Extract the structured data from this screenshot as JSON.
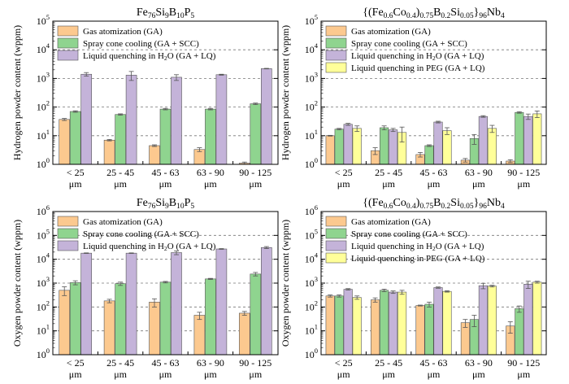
{
  "figure": {
    "background": "#ffffff"
  },
  "colors": {
    "GA": "#fcc98f",
    "GA + SCC": "#8fd48f",
    "GA + LQ": "#c4b3d9",
    "PEG": "#ffff99",
    "grid": "#777777",
    "error": "#555555"
  },
  "chart_data": [
    {
      "type": "bar",
      "scale": "log",
      "grid": "dashed horizontal at decades",
      "legend_position": "top-left",
      "title": {
        "base": "Fe",
        "sub": [
          "76",
          "Si",
          "9",
          "B",
          "10",
          "P",
          "5"
        ]
      },
      "ylabel": "Hydrogen powder content (wppm)",
      "ylim": [
        1,
        100000
      ],
      "y_ticks": [
        {
          "value": 1,
          "label": "10",
          "exp": "0"
        },
        {
          "value": 10,
          "label": "10",
          "exp": "1"
        },
        {
          "value": 100,
          "label": "10",
          "exp": "2"
        },
        {
          "value": 1000,
          "label": "10",
          "exp": "3"
        },
        {
          "value": 10000,
          "label": "10",
          "exp": "4"
        },
        {
          "value": 100000,
          "label": "10",
          "exp": "5"
        }
      ],
      "categories": [
        [
          "< 25",
          "μm"
        ],
        [
          "25 - 45",
          "μm"
        ],
        [
          "45 - 63",
          "μm"
        ],
        [
          "63 - 90",
          "μm"
        ],
        [
          "90 - 125",
          "μm"
        ]
      ],
      "series": [
        {
          "name": "Gas atomization (GA)",
          "key": "GA",
          "values": [
            37,
            7,
            4.5,
            3.3,
            1.1
          ],
          "errors": [
            3,
            0.4,
            0.3,
            0.5,
            0.1
          ]
        },
        {
          "name": "Spray cone cooling (GA + SCC)",
          "key": "GA + SCC",
          "values": [
            70,
            55,
            85,
            85,
            130
          ],
          "errors": [
            4,
            3,
            5,
            5,
            8
          ]
        },
        {
          "name": "Liquid quenching in H2O (GA + LQ)",
          "key": "GA + LQ",
          "values": [
            1400,
            1300,
            1100,
            1350,
            2200
          ],
          "errors": [
            200,
            450,
            250,
            50,
            50
          ]
        }
      ]
    },
    {
      "type": "bar",
      "scale": "log",
      "grid": "dashed horizontal at decades",
      "legend_position": "top-left",
      "title": {
        "base": "{(Fe",
        "sub": [
          "0.6",
          "Co",
          "0.4",
          ")",
          "0.75",
          "B",
          "0.2",
          "Si",
          "0.05",
          "}",
          "96",
          "Nb",
          "4"
        ]
      },
      "ylabel": "Hydrogen powder content (wppm)",
      "ylim": [
        1,
        100000
      ],
      "y_ticks": [
        {
          "value": 1,
          "label": "10",
          "exp": "0"
        },
        {
          "value": 10,
          "label": "10",
          "exp": "1"
        },
        {
          "value": 100,
          "label": "10",
          "exp": "2"
        },
        {
          "value": 1000,
          "label": "10",
          "exp": "3"
        },
        {
          "value": 10000,
          "label": "10",
          "exp": "4"
        },
        {
          "value": 100000,
          "label": "10",
          "exp": "5"
        }
      ],
      "categories": [
        [
          "< 25",
          "μm"
        ],
        [
          "25 - 45",
          "μm"
        ],
        [
          "45 - 63",
          "μm"
        ],
        [
          "63 - 90",
          "μm"
        ],
        [
          "90 - 125",
          "μm"
        ]
      ],
      "series": [
        {
          "name": "Gas atomization (GA)",
          "key": "GA",
          "values": [
            10,
            3,
            2.2,
            1.4,
            1.3
          ],
          "errors": [
            0.3,
            0.8,
            0.4,
            0.2,
            0.15
          ]
        },
        {
          "name": "Spray cone cooling (GA + SCC)",
          "key": "GA + SCC",
          "values": [
            17,
            19,
            4.5,
            8,
            65
          ],
          "errors": [
            1,
            3,
            0.3,
            3,
            4
          ]
        },
        {
          "name": "Liquid quenching in H2O (GA + LQ)",
          "key": "GA + LQ",
          "values": [
            25,
            16,
            30,
            47,
            47
          ],
          "errors": [
            2,
            2,
            2,
            3,
            10
          ]
        },
        {
          "name": "Liquid quenching in PEG (GA + LQ)",
          "key": "PEG",
          "values": [
            18,
            13,
            15,
            18,
            58
          ],
          "errors": [
            4,
            7,
            4,
            5,
            15
          ]
        }
      ]
    },
    {
      "type": "bar",
      "scale": "log",
      "grid": "dashed horizontal at decades",
      "legend_position": "top-left",
      "title": {
        "base": "Fe",
        "sub": [
          "76",
          "Si",
          "9",
          "B",
          "10",
          "P",
          "5"
        ]
      },
      "ylabel": "Oxygen powder content (wppm)",
      "ylim": [
        1,
        1000000
      ],
      "y_ticks": [
        {
          "value": 1,
          "label": "10",
          "exp": "0"
        },
        {
          "value": 10,
          "label": "10",
          "exp": "1"
        },
        {
          "value": 100,
          "label": "10",
          "exp": "2"
        },
        {
          "value": 1000,
          "label": "10",
          "exp": "3"
        },
        {
          "value": 10000,
          "label": "10",
          "exp": "4"
        },
        {
          "value": 100000,
          "label": "10",
          "exp": "5"
        },
        {
          "value": 1000000,
          "label": "10",
          "exp": "6"
        }
      ],
      "categories": [
        [
          "< 25",
          "μm"
        ],
        [
          "25 - 45",
          "μm"
        ],
        [
          "45 - 63",
          "μm"
        ],
        [
          "63 - 90",
          "μm"
        ],
        [
          "90 - 125",
          "μm"
        ]
      ],
      "series": [
        {
          "name": "Gas atomization (GA)",
          "key": "GA",
          "values": [
            500,
            180,
            160,
            45,
            55
          ],
          "errors": [
            200,
            30,
            60,
            15,
            10
          ]
        },
        {
          "name": "Spray cone cooling (GA + SCC)",
          "key": "GA + SCC",
          "values": [
            1050,
            950,
            1100,
            1500,
            2400
          ],
          "errors": [
            200,
            150,
            80,
            80,
            400
          ]
        },
        {
          "name": "Liquid quenching in H2O (GA + LQ)",
          "key": "GA + LQ",
          "values": [
            18000,
            18000,
            19000,
            27000,
            31000
          ],
          "errors": [
            500,
            500,
            3500,
            1000,
            3000
          ]
        }
      ]
    },
    {
      "type": "bar",
      "scale": "log",
      "grid": "dashed horizontal at decades",
      "legend_position": "top-left",
      "title": {
        "base": "{(Fe",
        "sub": [
          "0.6",
          "Co",
          "0.4",
          ")",
          "0.75",
          "B",
          "0.2",
          "Si",
          "0.05",
          "}",
          "96",
          "Nb",
          "4"
        ]
      },
      "ylabel": "Oxygen powder content (wppm)",
      "ylim": [
        1,
        1000000
      ],
      "y_ticks": [
        {
          "value": 1,
          "label": "10",
          "exp": "0"
        },
        {
          "value": 10,
          "label": "10",
          "exp": "1"
        },
        {
          "value": 100,
          "label": "10",
          "exp": "2"
        },
        {
          "value": 1000,
          "label": "10",
          "exp": "3"
        },
        {
          "value": 10000,
          "label": "10",
          "exp": "4"
        },
        {
          "value": 100000,
          "label": "10",
          "exp": "5"
        },
        {
          "value": 1000000,
          "label": "10",
          "exp": "6"
        }
      ],
      "categories": [
        [
          "< 25",
          "μm"
        ],
        [
          "25 - 45",
          "μm"
        ],
        [
          "45 - 63",
          "μm"
        ],
        [
          "63 - 90",
          "μm"
        ],
        [
          "90 - 125",
          "μm"
        ]
      ],
      "series": [
        {
          "name": "Gas atomization (GA)",
          "key": "GA",
          "values": [
            290,
            200,
            115,
            22,
            16
          ],
          "errors": [
            30,
            40,
            5,
            8,
            8
          ]
        },
        {
          "name": "Spray cone cooling (GA + SCC)",
          "key": "GA + SCC",
          "values": [
            290,
            500,
            130,
            30,
            85
          ],
          "errors": [
            30,
            60,
            30,
            15,
            25
          ]
        },
        {
          "name": "Liquid quenching in H2O (GA + LQ)",
          "key": "GA + LQ",
          "values": [
            550,
            420,
            650,
            780,
            900
          ],
          "errors": [
            40,
            50,
            40,
            200,
            300
          ]
        },
        {
          "name": "Liquid quenching in PEG (GA + LQ)",
          "key": "PEG",
          "values": [
            250,
            420,
            450,
            750,
            1100
          ],
          "errors": [
            40,
            80,
            30,
            60,
            100
          ]
        }
      ]
    }
  ]
}
